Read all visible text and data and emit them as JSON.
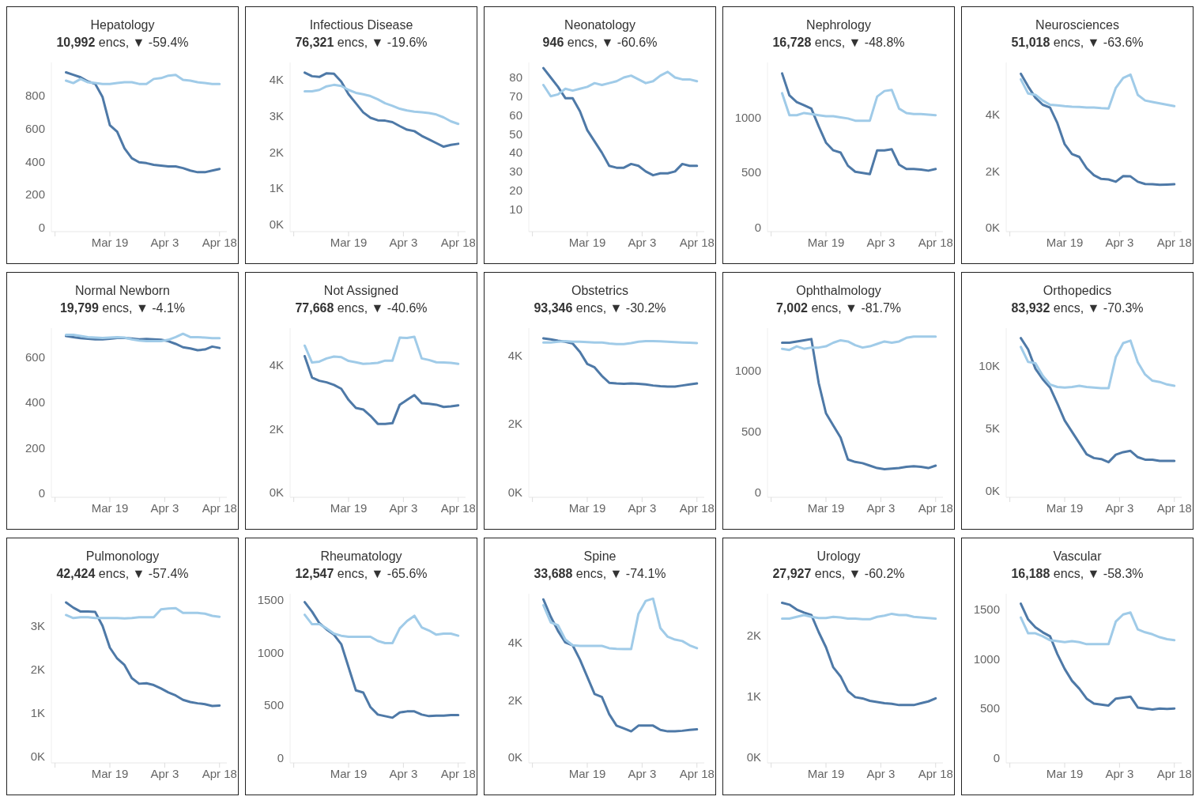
{
  "chart_data": [
    {
      "type": "line",
      "title": "Hepatology",
      "subtitle": "10,992 encs, ▼ -59.4%",
      "x": [
        "--03-07",
        "--03-09",
        "--03-11",
        "--03-13",
        "--03-15",
        "--03-17",
        "--03-19",
        "--03-21",
        "--03-23",
        "--03-25",
        "--03-27",
        "--03-29",
        "--03-31",
        "--04-02",
        "--04-04",
        "--04-06",
        "--04-08",
        "--04-10",
        "--04-12",
        "--04-14",
        "--04-16",
        "--04-18"
      ],
      "xlim": [
        "--03-03",
        "--04-20"
      ],
      "xticks": [
        {
          "value": "--03-04",
          "label": null
        },
        {
          "value": "--03-19",
          "label": "Mar 19"
        },
        {
          "value": "--04-03",
          "label": "Apr 3"
        },
        {
          "value": "--04-18",
          "label": "Apr 18"
        }
      ],
      "ylim": [
        -25,
        1000
      ],
      "yticks": [
        0,
        200,
        400,
        600,
        800
      ],
      "series": [
        {
          "color": "#4e79a7",
          "values": [
            940,
            925,
            910,
            885,
            870,
            790,
            620,
            580,
            480,
            420,
            395,
            390,
            380,
            375,
            370,
            370,
            360,
            345,
            335,
            335,
            345,
            355
          ]
        },
        {
          "color": "#a0cbe8",
          "values": [
            890,
            875,
            900,
            880,
            875,
            870,
            870,
            875,
            880,
            880,
            870,
            870,
            900,
            905,
            920,
            925,
            895,
            890,
            880,
            875,
            870,
            870
          ]
        }
      ]
    },
    {
      "type": "line",
      "title": "Infectious Disease",
      "subtitle": "76,321 encs, ▼ -19.6%",
      "x": [
        "--03-07",
        "--03-09",
        "--03-11",
        "--03-13",
        "--03-15",
        "--03-17",
        "--03-19",
        "--03-21",
        "--03-23",
        "--03-25",
        "--03-27",
        "--03-29",
        "--03-31",
        "--04-02",
        "--04-04",
        "--04-06",
        "--04-08",
        "--04-10",
        "--04-12",
        "--04-14",
        "--04-16",
        "--04-18"
      ],
      "xlim": [
        "--03-03",
        "--04-20"
      ],
      "xticks": [
        {
          "value": "--03-04",
          "label": null
        },
        {
          "value": "--03-19",
          "label": "Mar 19"
        },
        {
          "value": "--04-03",
          "label": "Apr 3"
        },
        {
          "value": "--04-18",
          "label": "Apr 18"
        }
      ],
      "ylim": [
        -200,
        4480
      ],
      "yticks": [
        {
          "value": 0,
          "label": "0K"
        },
        {
          "value": 1000,
          "label": "1K"
        },
        {
          "value": 2000,
          "label": "2K"
        },
        {
          "value": 3000,
          "label": "3K"
        },
        {
          "value": 4000,
          "label": "4K"
        }
      ],
      "series": [
        {
          "color": "#4e79a7",
          "values": [
            4200,
            4100,
            4080,
            4180,
            4170,
            3950,
            3600,
            3350,
            3100,
            2950,
            2880,
            2870,
            2830,
            2720,
            2620,
            2580,
            2450,
            2350,
            2250,
            2150,
            2200,
            2230
          ]
        },
        {
          "color": "#a0cbe8",
          "values": [
            3680,
            3680,
            3720,
            3820,
            3860,
            3830,
            3720,
            3640,
            3600,
            3550,
            3460,
            3350,
            3280,
            3200,
            3150,
            3120,
            3100,
            3080,
            3040,
            2960,
            2850,
            2780
          ]
        }
      ]
    },
    {
      "type": "line",
      "title": "Neonatology",
      "subtitle": "946 encs, ▼ -60.6%",
      "x": [
        "--03-07",
        "--03-09",
        "--03-11",
        "--03-13",
        "--03-15",
        "--03-17",
        "--03-19",
        "--03-21",
        "--03-23",
        "--03-25",
        "--03-27",
        "--03-29",
        "--03-31",
        "--04-02",
        "--04-04",
        "--04-06",
        "--04-08",
        "--04-10",
        "--04-12",
        "--04-14",
        "--04-16",
        "--04-18"
      ],
      "xlim": [
        "--03-03",
        "--04-20"
      ],
      "xticks": [
        {
          "value": "--03-04",
          "label": null
        },
        {
          "value": "--03-19",
          "label": "Mar 19"
        },
        {
          "value": "--04-03",
          "label": "Apr 3"
        },
        {
          "value": "--04-18",
          "label": "Apr 18"
        }
      ],
      "ylim": [
        -2,
        88
      ],
      "yticks": [
        10,
        20,
        30,
        40,
        50,
        60,
        70,
        80
      ],
      "series": [
        {
          "color": "#4e79a7",
          "values": [
            85,
            80,
            75,
            69,
            69,
            62,
            52,
            46,
            40,
            33,
            32,
            32,
            34,
            33,
            30,
            28,
            29,
            29,
            30,
            34,
            33,
            33
          ]
        },
        {
          "color": "#a0cbe8",
          "values": [
            76,
            70,
            71,
            74,
            73,
            74,
            75,
            77,
            76,
            77,
            78,
            80,
            81,
            79,
            77,
            78,
            81,
            83,
            80,
            79,
            79,
            78
          ]
        }
      ]
    },
    {
      "type": "line",
      "title": "Nephrology",
      "subtitle": "16,728 encs, ▼ -48.8%",
      "x": [
        "--03-07",
        "--03-09",
        "--03-11",
        "--03-13",
        "--03-15",
        "--03-17",
        "--03-19",
        "--03-21",
        "--03-23",
        "--03-25",
        "--03-27",
        "--03-29",
        "--03-31",
        "--04-02",
        "--04-04",
        "--04-06",
        "--04-08",
        "--04-10",
        "--04-12",
        "--04-14",
        "--04-16",
        "--04-18"
      ],
      "xlim": [
        "--03-03",
        "--04-20"
      ],
      "xticks": [
        {
          "value": "--03-04",
          "label": null
        },
        {
          "value": "--03-19",
          "label": "Mar 19"
        },
        {
          "value": "--04-03",
          "label": "Apr 3"
        },
        {
          "value": "--04-18",
          "label": "Apr 18"
        }
      ],
      "ylim": [
        -40,
        1500
      ],
      "yticks": [
        0,
        500,
        1000
      ],
      "series": [
        {
          "color": "#4e79a7",
          "values": [
            1400,
            1200,
            1140,
            1110,
            1080,
            920,
            770,
            700,
            680,
            560,
            505,
            495,
            484,
            700,
            700,
            710,
            570,
            530,
            530,
            525,
            515,
            530
          ]
        },
        {
          "color": "#a0cbe8",
          "values": [
            1220,
            1020,
            1020,
            1040,
            1030,
            1020,
            1010,
            1010,
            1000,
            990,
            970,
            970,
            970,
            1190,
            1240,
            1250,
            1080,
            1040,
            1030,
            1030,
            1025,
            1020
          ]
        }
      ]
    },
    {
      "type": "line",
      "title": "Neurosciences",
      "subtitle": "51,018 encs, ▼ -63.6%",
      "x": [
        "--03-07",
        "--03-09",
        "--03-11",
        "--03-13",
        "--03-15",
        "--03-17",
        "--03-19",
        "--03-21",
        "--03-23",
        "--03-25",
        "--03-27",
        "--03-29",
        "--03-31",
        "--04-02",
        "--04-04",
        "--04-06",
        "--04-08",
        "--04-10",
        "--04-12",
        "--04-14",
        "--04-16",
        "--04-18"
      ],
      "xlim": [
        "--03-03",
        "--04-20"
      ],
      "xticks": [
        {
          "value": "--03-04",
          "label": null
        },
        {
          "value": "--03-19",
          "label": "Mar 19"
        },
        {
          "value": "--04-03",
          "label": "Apr 3"
        },
        {
          "value": "--04-18",
          "label": "Apr 18"
        }
      ],
      "ylim": [
        -150,
        5850
      ],
      "yticks": [
        {
          "value": 0,
          "label": "0K"
        },
        {
          "value": 2000,
          "label": "2K"
        },
        {
          "value": 4000,
          "label": "4K"
        }
      ],
      "series": [
        {
          "color": "#4e79a7",
          "values": [
            5450,
            5000,
            4600,
            4350,
            4250,
            3700,
            2950,
            2600,
            2500,
            2100,
            1850,
            1720,
            1700,
            1620,
            1820,
            1810,
            1620,
            1540,
            1530,
            1510,
            1520,
            1530
          ]
        },
        {
          "color": "#a0cbe8",
          "values": [
            5250,
            4750,
            4700,
            4500,
            4350,
            4330,
            4300,
            4280,
            4270,
            4250,
            4250,
            4230,
            4220,
            4950,
            5300,
            5420,
            4700,
            4500,
            4450,
            4400,
            4350,
            4300
          ]
        }
      ]
    },
    {
      "type": "line",
      "title": "Normal Newborn",
      "subtitle": "19,799 encs, ▼ -4.1%",
      "x": [
        "--03-07",
        "--03-09",
        "--03-11",
        "--03-13",
        "--03-15",
        "--03-17",
        "--03-19",
        "--03-21",
        "--03-23",
        "--03-25",
        "--03-27",
        "--03-29",
        "--03-31",
        "--04-02",
        "--04-04",
        "--04-06",
        "--04-08",
        "--04-10",
        "--04-12",
        "--04-14",
        "--04-16",
        "--04-18"
      ],
      "xlim": [
        "--03-03",
        "--04-20"
      ],
      "xticks": [
        {
          "value": "--03-04",
          "label": null
        },
        {
          "value": "--03-19",
          "label": "Mar 19"
        },
        {
          "value": "--04-03",
          "label": "Apr 3"
        },
        {
          "value": "--04-18",
          "label": "Apr 18"
        }
      ],
      "ylim": [
        -20,
        730
      ],
      "yticks": [
        0,
        200,
        400,
        600
      ],
      "series": [
        {
          "color": "#4e79a7",
          "values": [
            695,
            690,
            685,
            683,
            680,
            680,
            683,
            686,
            686,
            684,
            680,
            682,
            680,
            678,
            672,
            660,
            645,
            640,
            632,
            635,
            648,
            642
          ]
        },
        {
          "color": "#a0cbe8",
          "values": [
            700,
            700,
            695,
            690,
            688,
            686,
            688,
            690,
            688,
            680,
            675,
            672,
            672,
            672,
            678,
            690,
            705,
            690,
            690,
            688,
            685,
            685
          ]
        }
      ]
    },
    {
      "type": "line",
      "title": "Not Assigned",
      "subtitle": "77,668 encs, ▼ -40.6%",
      "x": [
        "--03-07",
        "--03-09",
        "--03-11",
        "--03-13",
        "--03-15",
        "--03-17",
        "--03-19",
        "--03-21",
        "--03-23",
        "--03-25",
        "--03-27",
        "--03-29",
        "--03-31",
        "--04-02",
        "--04-04",
        "--04-06",
        "--04-08",
        "--04-10",
        "--04-12",
        "--04-14",
        "--04-16",
        "--04-18"
      ],
      "xlim": [
        "--03-03",
        "--04-20"
      ],
      "xticks": [
        {
          "value": "--03-04",
          "label": null
        },
        {
          "value": "--03-19",
          "label": "Mar 19"
        },
        {
          "value": "--04-03",
          "label": "Apr 3"
        },
        {
          "value": "--04-18",
          "label": "Apr 18"
        }
      ],
      "ylim": [
        -150,
        5150
      ],
      "yticks": [
        {
          "value": 0,
          "label": "0K"
        },
        {
          "value": 2000,
          "label": "2K"
        },
        {
          "value": 4000,
          "label": "4K"
        }
      ],
      "series": [
        {
          "color": "#4e79a7",
          "values": [
            4270,
            3600,
            3500,
            3450,
            3370,
            3250,
            2900,
            2650,
            2600,
            2400,
            2150,
            2150,
            2170,
            2750,
            2900,
            3050,
            2800,
            2780,
            2750,
            2680,
            2700,
            2730
          ]
        },
        {
          "color": "#a0cbe8",
          "values": [
            4600,
            4070,
            4100,
            4200,
            4260,
            4240,
            4120,
            4080,
            4030,
            4040,
            4060,
            4130,
            4130,
            4850,
            4840,
            4880,
            4200,
            4150,
            4080,
            4070,
            4060,
            4030
          ]
        }
      ]
    },
    {
      "type": "line",
      "title": "Obstetrics",
      "subtitle": "93,346 encs, ▼ -30.2%",
      "x": [
        "--03-07",
        "--03-09",
        "--03-11",
        "--03-13",
        "--03-15",
        "--03-17",
        "--03-19",
        "--03-21",
        "--03-23",
        "--03-25",
        "--03-27",
        "--03-29",
        "--03-31",
        "--04-02",
        "--04-04",
        "--04-06",
        "--04-08",
        "--04-10",
        "--04-12",
        "--04-14",
        "--04-16",
        "--04-18"
      ],
      "xlim": [
        "--03-03",
        "--04-20"
      ],
      "xticks": [
        {
          "value": "--03-04",
          "label": null
        },
        {
          "value": "--03-19",
          "label": "Mar 19"
        },
        {
          "value": "--04-03",
          "label": "Apr 3"
        },
        {
          "value": "--04-18",
          "label": "Apr 18"
        }
      ],
      "ylim": [
        -150,
        4800
      ],
      "yticks": [
        {
          "value": 0,
          "label": "0K"
        },
        {
          "value": 2000,
          "label": "2K"
        },
        {
          "value": 4000,
          "label": "4K"
        }
      ],
      "series": [
        {
          "color": "#4e79a7",
          "values": [
            4500,
            4470,
            4430,
            4400,
            4350,
            4100,
            3750,
            3650,
            3400,
            3200,
            3180,
            3170,
            3180,
            3170,
            3150,
            3120,
            3100,
            3090,
            3090,
            3120,
            3150,
            3180
          ]
        },
        {
          "color": "#a0cbe8",
          "values": [
            4380,
            4380,
            4400,
            4420,
            4400,
            4400,
            4390,
            4380,
            4380,
            4350,
            4330,
            4330,
            4360,
            4400,
            4420,
            4420,
            4410,
            4400,
            4390,
            4380,
            4370,
            4360
          ]
        }
      ]
    },
    {
      "type": "line",
      "title": "Ophthalmology",
      "subtitle": "7,002 encs, ▼ -81.7%",
      "x": [
        "--03-07",
        "--03-09",
        "--03-11",
        "--03-13",
        "--03-15",
        "--03-17",
        "--03-19",
        "--03-21",
        "--03-23",
        "--03-25",
        "--03-27",
        "--03-29",
        "--03-31",
        "--04-02",
        "--04-04",
        "--04-06",
        "--04-08",
        "--04-10",
        "--04-12",
        "--04-14",
        "--04-16",
        "--04-18"
      ],
      "xlim": [
        "--03-03",
        "--04-20"
      ],
      "xticks": [
        {
          "value": "--03-04",
          "label": null
        },
        {
          "value": "--03-19",
          "label": "Mar 19"
        },
        {
          "value": "--04-03",
          "label": "Apr 3"
        },
        {
          "value": "--04-18",
          "label": "Apr 18"
        }
      ],
      "ylim": [
        -40,
        1350
      ],
      "yticks": [
        0,
        500,
        1000
      ],
      "series": [
        {
          "color": "#4e79a7",
          "values": [
            1230,
            1230,
            1240,
            1250,
            1260,
            900,
            650,
            550,
            450,
            270,
            250,
            240,
            220,
            200,
            190,
            195,
            200,
            210,
            215,
            210,
            200,
            220
          ]
        },
        {
          "color": "#a0cbe8",
          "values": [
            1180,
            1170,
            1200,
            1180,
            1190,
            1190,
            1200,
            1230,
            1250,
            1240,
            1210,
            1190,
            1200,
            1220,
            1240,
            1230,
            1240,
            1270,
            1280,
            1280,
            1280,
            1280
          ]
        }
      ]
    },
    {
      "type": "line",
      "title": "Orthopedics",
      "subtitle": "83,932 encs, ▼ -70.3%",
      "x": [
        "--03-07",
        "--03-09",
        "--03-11",
        "--03-13",
        "--03-15",
        "--03-17",
        "--03-19",
        "--03-21",
        "--03-23",
        "--03-25",
        "--03-27",
        "--03-29",
        "--03-31",
        "--04-02",
        "--04-04",
        "--04-06",
        "--04-08",
        "--04-10",
        "--04-12",
        "--04-14",
        "--04-16",
        "--04-18"
      ],
      "xlim": [
        "--03-03",
        "--04-20"
      ],
      "xticks": [
        {
          "value": "--03-04",
          "label": null
        },
        {
          "value": "--03-19",
          "label": "Mar 19"
        },
        {
          "value": "--04-03",
          "label": "Apr 3"
        },
        {
          "value": "--04-18",
          "label": "Apr 18"
        }
      ],
      "ylim": [
        -500,
        13000
      ],
      "yticks": [
        {
          "value": 0,
          "label": "0K"
        },
        {
          "value": 5000,
          "label": "5K"
        },
        {
          "value": 10000,
          "label": "10K"
        }
      ],
      "series": [
        {
          "color": "#4e79a7",
          "values": [
            12200,
            11300,
            9760,
            8920,
            8260,
            6980,
            5630,
            4730,
            3830,
            2930,
            2630,
            2550,
            2300,
            2900,
            3100,
            3200,
            2700,
            2500,
            2500,
            2400,
            2400,
            2400
          ]
        },
        {
          "color": "#a0cbe8",
          "values": [
            11500,
            10300,
            10200,
            9200,
            8500,
            8300,
            8250,
            8300,
            8400,
            8300,
            8250,
            8200,
            8200,
            10700,
            11800,
            12000,
            10270,
            9300,
            8800,
            8700,
            8500,
            8400
          ]
        }
      ]
    },
    {
      "type": "line",
      "title": "Pulmonology",
      "subtitle": "42,424 encs, ▼ -57.4%",
      "x": [
        "--03-07",
        "--03-09",
        "--03-11",
        "--03-13",
        "--03-15",
        "--03-17",
        "--03-19",
        "--03-21",
        "--03-23",
        "--03-25",
        "--03-27",
        "--03-29",
        "--03-31",
        "--04-02",
        "--04-04",
        "--04-06",
        "--04-08",
        "--04-10",
        "--04-12",
        "--04-14",
        "--04-16",
        "--04-18"
      ],
      "xlim": [
        "--03-03",
        "--04-20"
      ],
      "xticks": [
        {
          "value": "--03-04",
          "label": null
        },
        {
          "value": "--03-19",
          "label": "Mar 19"
        },
        {
          "value": "--04-03",
          "label": "Apr 3"
        },
        {
          "value": "--04-18",
          "label": "Apr 18"
        }
      ],
      "ylim": [
        -150,
        3740
      ],
      "yticks": [
        {
          "value": 0,
          "label": "0K"
        },
        {
          "value": 1000,
          "label": "1K"
        },
        {
          "value": 2000,
          "label": "2K"
        },
        {
          "value": 3000,
          "label": "3K"
        }
      ],
      "series": [
        {
          "color": "#4e79a7",
          "values": [
            3540,
            3420,
            3330,
            3330,
            3320,
            3000,
            2500,
            2250,
            2100,
            1800,
            1670,
            1680,
            1640,
            1560,
            1470,
            1400,
            1300,
            1250,
            1220,
            1200,
            1160,
            1170
          ]
        },
        {
          "color": "#a0cbe8",
          "values": [
            3250,
            3180,
            3200,
            3200,
            3180,
            3180,
            3180,
            3180,
            3170,
            3180,
            3200,
            3200,
            3200,
            3380,
            3400,
            3410,
            3300,
            3300,
            3300,
            3280,
            3230,
            3210
          ]
        }
      ]
    },
    {
      "type": "line",
      "title": "Rheumatology",
      "subtitle": "12,547 encs, ▼ -65.6%",
      "x": [
        "--03-07",
        "--03-09",
        "--03-11",
        "--03-13",
        "--03-15",
        "--03-17",
        "--03-19",
        "--03-21",
        "--03-23",
        "--03-25",
        "--03-27",
        "--03-29",
        "--03-31",
        "--04-02",
        "--04-04",
        "--04-06",
        "--04-08",
        "--04-10",
        "--04-12",
        "--04-14",
        "--04-16",
        "--04-18"
      ],
      "xlim": [
        "--03-03",
        "--04-20"
      ],
      "xticks": [
        {
          "value": "--03-04",
          "label": null
        },
        {
          "value": "--03-19",
          "label": "Mar 19"
        },
        {
          "value": "--04-03",
          "label": "Apr 3"
        },
        {
          "value": "--04-18",
          "label": "Apr 18"
        }
      ],
      "ylim": [
        -50,
        1560
      ],
      "yticks": [
        0,
        500,
        1000,
        1500
      ],
      "series": [
        {
          "color": "#4e79a7",
          "values": [
            1480,
            1390,
            1280,
            1220,
            1170,
            1080,
            860,
            640,
            620,
            480,
            410,
            395,
            380,
            430,
            440,
            440,
            410,
            395,
            400,
            400,
            405,
            405
          ]
        },
        {
          "color": "#a0cbe8",
          "values": [
            1360,
            1270,
            1270,
            1230,
            1180,
            1160,
            1150,
            1150,
            1150,
            1150,
            1110,
            1090,
            1090,
            1230,
            1300,
            1350,
            1240,
            1210,
            1170,
            1180,
            1180,
            1160
          ]
        }
      ]
    },
    {
      "type": "line",
      "title": "Spine",
      "subtitle": "33,688 encs, ▼ -74.1%",
      "x": [
        "--03-07",
        "--03-09",
        "--03-11",
        "--03-13",
        "--03-15",
        "--03-17",
        "--03-19",
        "--03-21",
        "--03-23",
        "--03-25",
        "--03-27",
        "--03-29",
        "--03-31",
        "--04-02",
        "--04-04",
        "--04-06",
        "--04-08",
        "--04-10",
        "--04-12",
        "--04-14",
        "--04-16",
        "--04-18"
      ],
      "xlim": [
        "--03-03",
        "--04-20"
      ],
      "xticks": [
        {
          "value": "--03-04",
          "label": null
        },
        {
          "value": "--03-19",
          "label": "Mar 19"
        },
        {
          "value": "--04-03",
          "label": "Apr 3"
        },
        {
          "value": "--04-18",
          "label": "Apr 18"
        }
      ],
      "ylim": [
        -200,
        5700
      ],
      "yticks": [
        {
          "value": 0,
          "label": "0K"
        },
        {
          "value": 2000,
          "label": "2K"
        },
        {
          "value": 4000,
          "label": "4K"
        }
      ],
      "series": [
        {
          "color": "#4e79a7",
          "values": [
            5500,
            4900,
            4400,
            4000,
            3900,
            3400,
            2800,
            2200,
            2100,
            1500,
            1100,
            1000,
            900,
            1100,
            1100,
            1100,
            950,
            900,
            900,
            920,
            950,
            970
          ]
        },
        {
          "color": "#a0cbe8",
          "values": [
            5300,
            4700,
            4600,
            4100,
            3900,
            3880,
            3880,
            3880,
            3880,
            3800,
            3780,
            3770,
            3770,
            5000,
            5450,
            5530,
            4500,
            4200,
            4100,
            4050,
            3900,
            3800
          ]
        }
      ]
    },
    {
      "type": "line",
      "title": "Urology",
      "subtitle": "27,927 encs, ▼ -60.2%",
      "x": [
        "--03-07",
        "--03-09",
        "--03-11",
        "--03-13",
        "--03-15",
        "--03-17",
        "--03-19",
        "--03-21",
        "--03-23",
        "--03-25",
        "--03-27",
        "--03-29",
        "--03-31",
        "--04-02",
        "--04-04",
        "--04-06",
        "--04-08",
        "--04-10",
        "--04-12",
        "--04-14",
        "--04-16",
        "--04-18"
      ],
      "xlim": [
        "--03-03",
        "--04-20"
      ],
      "xticks": [
        {
          "value": "--03-04",
          "label": null
        },
        {
          "value": "--03-19",
          "label": "Mar 19"
        },
        {
          "value": "--04-03",
          "label": "Apr 3"
        },
        {
          "value": "--04-18",
          "label": "Apr 18"
        }
      ],
      "ylim": [
        -100,
        2680
      ],
      "yticks": [
        {
          "value": 0,
          "label": "0K"
        },
        {
          "value": 1000,
          "label": "1K"
        },
        {
          "value": 2000,
          "label": "2K"
        }
      ],
      "series": [
        {
          "color": "#4e79a7",
          "values": [
            2530,
            2500,
            2420,
            2370,
            2330,
            2050,
            1800,
            1470,
            1320,
            1080,
            980,
            960,
            920,
            900,
            880,
            870,
            850,
            850,
            850,
            880,
            910,
            960
          ]
        },
        {
          "color": "#a0cbe8",
          "values": [
            2270,
            2270,
            2300,
            2330,
            2300,
            2280,
            2280,
            2300,
            2290,
            2270,
            2270,
            2260,
            2260,
            2300,
            2320,
            2350,
            2330,
            2330,
            2300,
            2290,
            2280,
            2270
          ]
        }
      ]
    },
    {
      "type": "line",
      "title": "Vascular",
      "subtitle": "16,188 encs, ▼ -58.3%",
      "x": [
        "--03-07",
        "--03-09",
        "--03-11",
        "--03-13",
        "--03-15",
        "--03-17",
        "--03-19",
        "--03-21",
        "--03-23",
        "--03-25",
        "--03-27",
        "--03-29",
        "--03-31",
        "--04-02",
        "--04-04",
        "--04-06",
        "--04-08",
        "--04-10",
        "--04-12",
        "--04-14",
        "--04-16",
        "--04-18"
      ],
      "xlim": [
        "--03-03",
        "--04-20"
      ],
      "xticks": [
        {
          "value": "--03-04",
          "label": null
        },
        {
          "value": "--03-19",
          "label": "Mar 19"
        },
        {
          "value": "--04-03",
          "label": "Apr 3"
        },
        {
          "value": "--04-18",
          "label": "Apr 18"
        }
      ],
      "ylim": [
        -50,
        1660
      ],
      "yticks": [
        0,
        500,
        1000,
        1500
      ],
      "series": [
        {
          "color": "#4e79a7",
          "values": [
            1560,
            1400,
            1320,
            1270,
            1230,
            1050,
            900,
            780,
            700,
            600,
            550,
            540,
            530,
            600,
            610,
            620,
            510,
            500,
            490,
            500,
            495,
            500
          ]
        },
        {
          "color": "#a0cbe8",
          "values": [
            1420,
            1260,
            1260,
            1230,
            1190,
            1180,
            1170,
            1180,
            1170,
            1150,
            1150,
            1150,
            1150,
            1380,
            1450,
            1470,
            1300,
            1270,
            1250,
            1220,
            1200,
            1190
          ]
        }
      ]
    }
  ]
}
